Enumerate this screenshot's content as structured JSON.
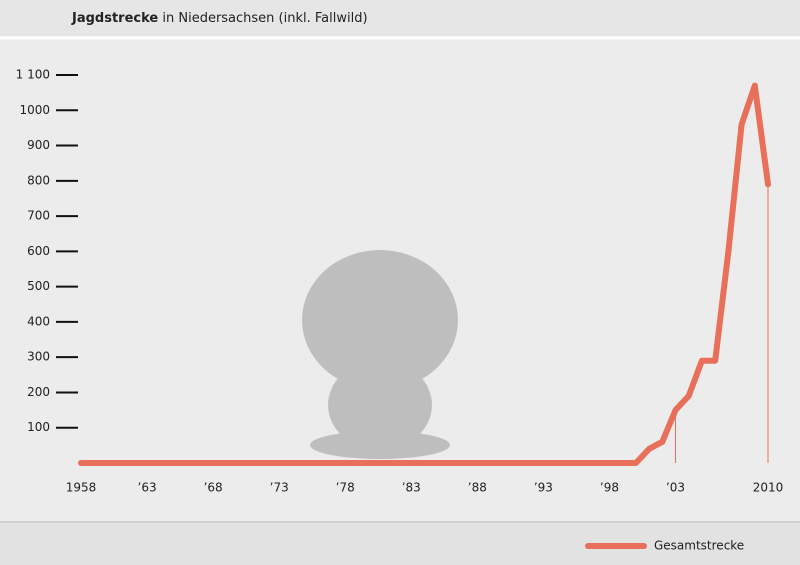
{
  "chart_data": {
    "type": "line",
    "title": "Jagdstrecke",
    "subtitle": "in Niedersachsen (inkl. Fallwild)",
    "x": [
      1958,
      1959,
      1960,
      1961,
      1962,
      1963,
      1964,
      1965,
      1966,
      1967,
      1968,
      1969,
      1970,
      1971,
      1972,
      1973,
      1974,
      1975,
      1976,
      1977,
      1978,
      1979,
      1980,
      1981,
      1982,
      1983,
      1984,
      1985,
      1986,
      1987,
      1988,
      1989,
      1990,
      1991,
      1992,
      1993,
      1994,
      1995,
      1996,
      1997,
      1998,
      1999,
      2000,
      2001,
      2002,
      2003,
      2004,
      2005,
      2006,
      2007,
      2008,
      2009,
      2010
    ],
    "series": [
      {
        "name": "Gesamtstrecke",
        "color": "#e8705a",
        "values": [
          0,
          0,
          0,
          0,
          0,
          0,
          0,
          0,
          0,
          0,
          0,
          0,
          0,
          0,
          0,
          0,
          0,
          0,
          0,
          0,
          0,
          0,
          0,
          0,
          0,
          0,
          0,
          0,
          0,
          0,
          0,
          0,
          0,
          0,
          0,
          0,
          0,
          0,
          0,
          0,
          0,
          0,
          0,
          40,
          60,
          150,
          190,
          290,
          290,
          600,
          960,
          1070,
          790
        ]
      }
    ],
    "xlim": [
      1958,
      2010
    ],
    "xticks": [
      1958,
      {
        "value": 1963,
        "label": "’63"
      },
      {
        "value": 1968,
        "label": "’68"
      },
      {
        "value": 1973,
        "label": "’73"
      },
      {
        "value": 1978,
        "label": "’78"
      },
      {
        "value": 1983,
        "label": "’83"
      },
      {
        "value": 1988,
        "label": "’88"
      },
      {
        "value": 1993,
        "label": "’93"
      },
      {
        "value": 1998,
        "label": "’98"
      },
      {
        "value": 2003,
        "label": "’03"
      },
      2010
    ],
    "ylim": [
      0,
      1100
    ],
    "yticks": [
      100,
      200,
      300,
      400,
      500,
      600,
      700,
      800,
      900,
      {
        "value": 1000,
        "label": "1000"
      },
      {
        "value": 1100,
        "label": "1 100"
      }
    ],
    "drop_lines": [
      2003,
      2010
    ],
    "legend": "bottom-right"
  }
}
